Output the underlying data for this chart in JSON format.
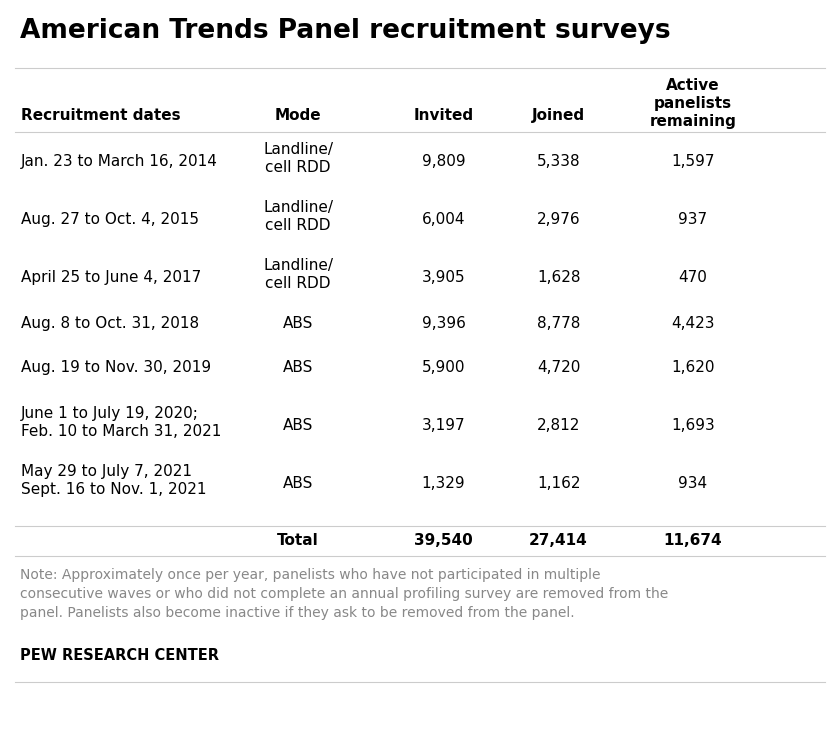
{
  "title": "American Trends Panel recruitment surveys",
  "header_labels": {
    "dates": "Recruitment dates",
    "mode": "Mode",
    "invited": "Invited",
    "joined": "Joined",
    "active": "Active\npanelists\nremaining"
  },
  "rows": [
    {
      "dates": "Jan. 23 to March 16, 2014",
      "mode": "Landline/\ncell RDD",
      "invited": "9,809",
      "joined": "5,338",
      "active": "1,597",
      "mode_lines": 2,
      "dates_lines": 1
    },
    {
      "dates": "Aug. 27 to Oct. 4, 2015",
      "mode": "Landline/\ncell RDD",
      "invited": "6,004",
      "joined": "2,976",
      "active": "937",
      "mode_lines": 2,
      "dates_lines": 1
    },
    {
      "dates": "April 25 to June 4, 2017",
      "mode": "Landline/\ncell RDD",
      "invited": "3,905",
      "joined": "1,628",
      "active": "470",
      "mode_lines": 2,
      "dates_lines": 1
    },
    {
      "dates": "Aug. 8 to Oct. 31, 2018",
      "mode": "ABS",
      "invited": "9,396",
      "joined": "8,778",
      "active": "4,423",
      "mode_lines": 1,
      "dates_lines": 1
    },
    {
      "dates": "Aug. 19 to Nov. 30, 2019",
      "mode": "ABS",
      "invited": "5,900",
      "joined": "4,720",
      "active": "1,620",
      "mode_lines": 1,
      "dates_lines": 1
    },
    {
      "dates": "June 1 to July 19, 2020;\nFeb. 10 to March 31, 2021",
      "mode": "ABS",
      "invited": "3,197",
      "joined": "2,812",
      "active": "1,693",
      "mode_lines": 1,
      "dates_lines": 2
    },
    {
      "dates": "May 29 to July 7, 2021\nSept. 16 to Nov. 1, 2021",
      "mode": "ABS",
      "invited": "1,329",
      "joined": "1,162",
      "active": "934",
      "mode_lines": 1,
      "dates_lines": 2
    }
  ],
  "total_row": {
    "mode": "Total",
    "invited": "39,540",
    "joined": "27,414",
    "active": "11,674"
  },
  "note": "Note: Approximately once per year, panelists who have not participated in multiple\nconsecutive waves or who did not complete an annual profiling survey are removed from the\npanel. Panelists also become inactive if they ask to be removed from the panel.",
  "source": "PEW RESEARCH CENTER",
  "bg_color": "#ffffff",
  "text_color": "#000000",
  "note_color": "#888888",
  "line_color": "#cccccc",
  "title_fontsize": 19,
  "header_fontsize": 11,
  "body_fontsize": 11,
  "note_fontsize": 10,
  "source_fontsize": 10.5,
  "col_x_frac": {
    "dates": 0.025,
    "mode": 0.355,
    "invited": 0.528,
    "joined": 0.665,
    "active": 0.825
  },
  "header_align": {
    "dates": "left",
    "mode": "center",
    "invited": "center",
    "joined": "center",
    "active": "center"
  }
}
